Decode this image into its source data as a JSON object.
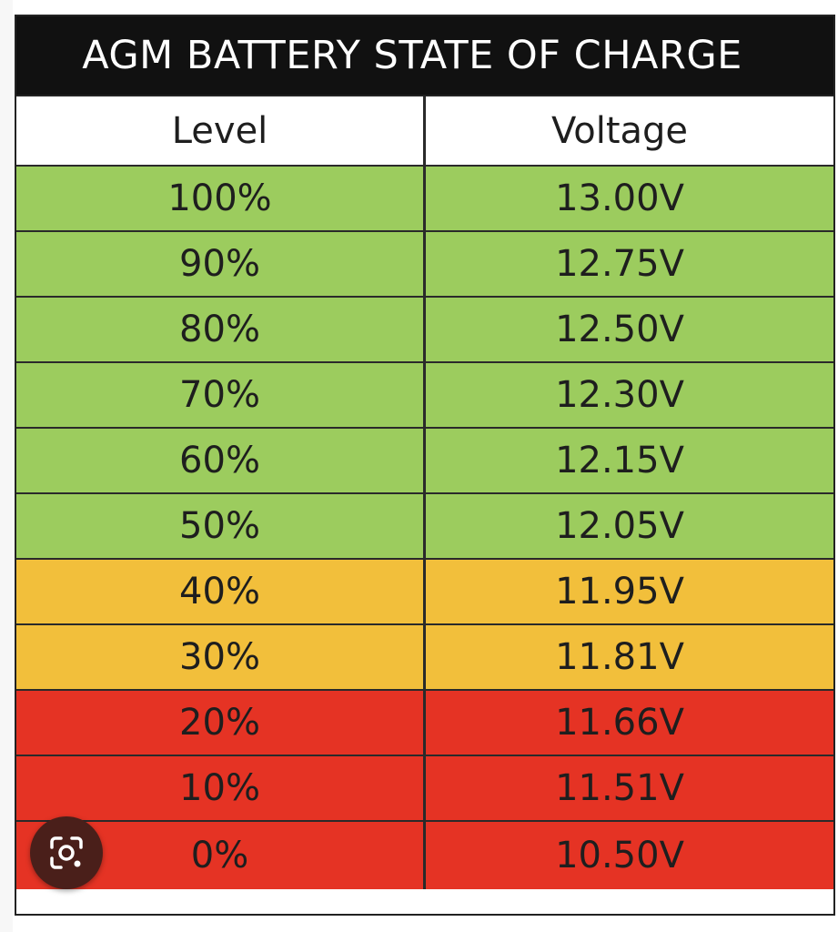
{
  "table": {
    "title": "AGM BATTERY STATE OF CHARGE",
    "headers": {
      "level": "Level",
      "voltage": "Voltage"
    },
    "rows": [
      {
        "level": "100%",
        "voltage": "13.00V",
        "color": "#9ccc5e"
      },
      {
        "level": "90%",
        "voltage": "12.75V",
        "color": "#9ccc5e"
      },
      {
        "level": "80%",
        "voltage": "12.50V",
        "color": "#9ccc5e"
      },
      {
        "level": "70%",
        "voltage": "12.30V",
        "color": "#9ccc5e"
      },
      {
        "level": "60%",
        "voltage": "12.15V",
        "color": "#9ccc5e"
      },
      {
        "level": "50%",
        "voltage": "12.05V",
        "color": "#9ccc5e"
      },
      {
        "level": "40%",
        "voltage": "11.95V",
        "color": "#f2bf3b"
      },
      {
        "level": "30%",
        "voltage": "11.81V",
        "color": "#f2bf3b"
      },
      {
        "level": "20%",
        "voltage": "11.66V",
        "color": "#e53324"
      },
      {
        "level": "10%",
        "voltage": "11.51V",
        "color": "#e53324"
      },
      {
        "level": "0%",
        "voltage": "10.50V",
        "color": "#e53324"
      }
    ]
  },
  "overlay": {
    "lens_icon": "lens-search-icon"
  }
}
